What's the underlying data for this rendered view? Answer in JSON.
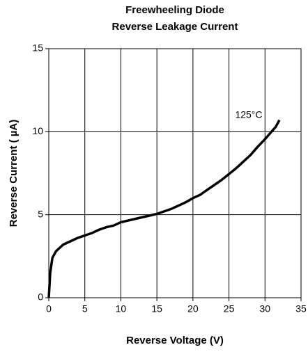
{
  "chart_data": {
    "type": "line",
    "title": [
      "Freewheeling Diode",
      "Reverse Leakage Current"
    ],
    "x_label": "Reverse Voltage (V)",
    "y_label": "Reverse Current ( µA)",
    "annotation": "125°C",
    "x": [
      0,
      0.2,
      0.5,
      1,
      1.5,
      2,
      3,
      4,
      5,
      6,
      7,
      8,
      9,
      10,
      11,
      12,
      13,
      14,
      15,
      16,
      17,
      18,
      19,
      20,
      21,
      22,
      23,
      24,
      25,
      26,
      27,
      28,
      29,
      30,
      31,
      31.5,
      32
    ],
    "series": [
      {
        "name": "125°C",
        "color": "#000000",
        "values": [
          0,
          1.5,
          2.4,
          2.8,
          3.0,
          3.2,
          3.4,
          3.6,
          3.75,
          3.9,
          4.1,
          4.25,
          4.35,
          4.55,
          4.65,
          4.75,
          4.85,
          4.95,
          5.05,
          5.2,
          5.35,
          5.55,
          5.75,
          6.0,
          6.2,
          6.5,
          6.8,
          7.1,
          7.45,
          7.8,
          8.2,
          8.6,
          9.1,
          9.55,
          10.05,
          10.3,
          10.7
        ]
      }
    ],
    "xlim": [
      0,
      35
    ],
    "xticks": [
      0,
      5,
      10,
      15,
      20,
      25,
      30,
      35
    ],
    "ylim": [
      0,
      15
    ],
    "yticks": [
      0,
      5,
      10,
      15
    ],
    "grid": true
  }
}
